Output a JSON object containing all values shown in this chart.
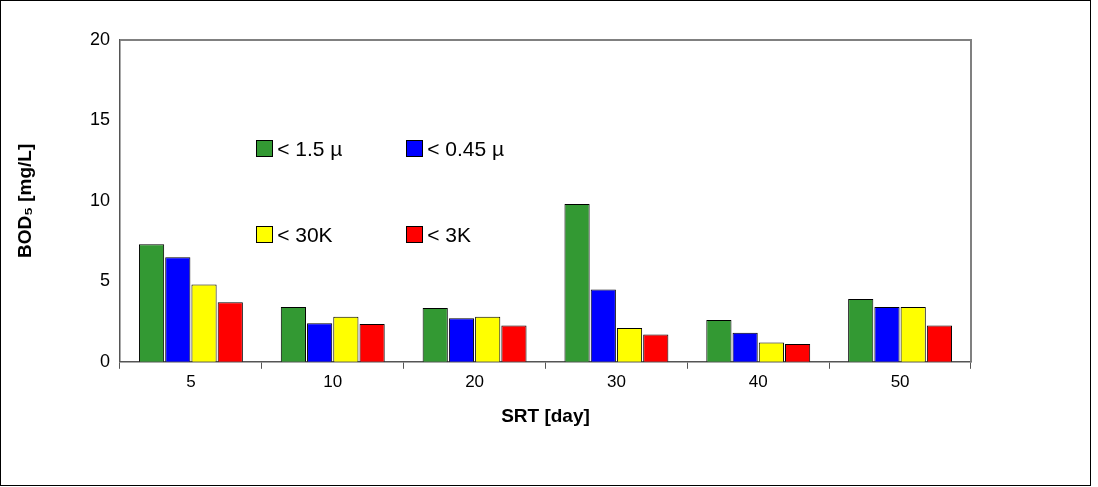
{
  "chart_data": {
    "type": "bar",
    "xlabel": "SRT [day]",
    "ylabel": "BOD₅ [mg/L]",
    "categories": [
      "5",
      "10",
      "20",
      "30",
      "40",
      "50"
    ],
    "series": [
      {
        "name": "< 1.5 µ",
        "color": "#339933",
        "values": [
          7.3,
          3.4,
          3.35,
          9.8,
          2.6,
          3.9
        ]
      },
      {
        "name": "< 0.45 µ",
        "color": "#0000ff",
        "values": [
          6.5,
          2.4,
          2.7,
          4.5,
          1.8,
          3.4
        ]
      },
      {
        "name": "< 30K",
        "color": "#ffff00",
        "values": [
          4.8,
          2.8,
          2.8,
          2.1,
          1.2,
          3.4
        ]
      },
      {
        "name": "< 3K",
        "color": "#ff0000",
        "values": [
          3.7,
          2.35,
          2.25,
          1.7,
          1.1,
          2.25
        ]
      }
    ],
    "ylim": [
      0,
      20
    ],
    "yticks": [
      0,
      5,
      10,
      15,
      20
    ],
    "grid": false,
    "legend": "top left"
  }
}
